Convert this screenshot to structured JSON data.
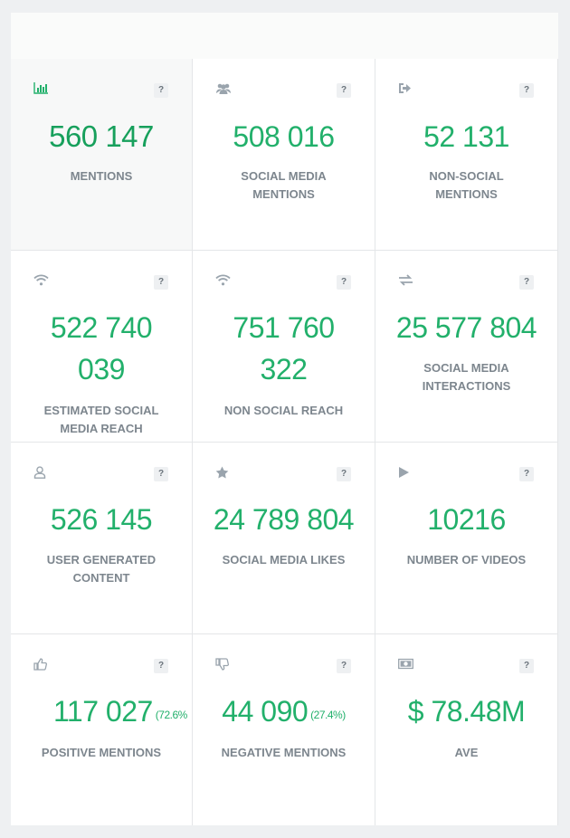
{
  "tiles": [
    {
      "icon": "bar-chart-icon",
      "value": "560 147",
      "label": "MENTIONS"
    },
    {
      "icon": "users-icon",
      "value": "508 016",
      "label": "SOCIAL MEDIA MENTIONS"
    },
    {
      "icon": "sign-out-icon",
      "value": "52 131",
      "label": "NON-SOCIAL MENTIONS"
    },
    {
      "icon": "wifi-icon",
      "value": "522 740 039",
      "label": "ESTIMATED SOCIAL MEDIA REACH"
    },
    {
      "icon": "wifi-icon",
      "value": "751 760 322",
      "label": "NON SOCIAL REACH"
    },
    {
      "icon": "exchange-icon",
      "value": "25 577 804",
      "label": "SOCIAL MEDIA INTERACTIONS"
    },
    {
      "icon": "user-icon",
      "value": "526 145",
      "label": "USER GENERATED CONTENT"
    },
    {
      "icon": "star-icon",
      "value": "24 789 804",
      "label": "SOCIAL MEDIA LIKES"
    },
    {
      "icon": "play-icon",
      "value": "10216",
      "label": "NUMBER OF VIDEOS"
    },
    {
      "icon": "thumbs-up-icon",
      "value": "117 027",
      "pct": "(72.6%",
      "label": "POSITIVE MENTIONS"
    },
    {
      "icon": "thumbs-down-icon",
      "value": "44 090",
      "pct": "(27.4%)",
      "label": "NEGATIVE MENTIONS"
    },
    {
      "icon": "money-icon",
      "value": "$ 78.48M",
      "label": "AVE"
    }
  ],
  "help_label": "?",
  "accent_color": "#22b06b"
}
